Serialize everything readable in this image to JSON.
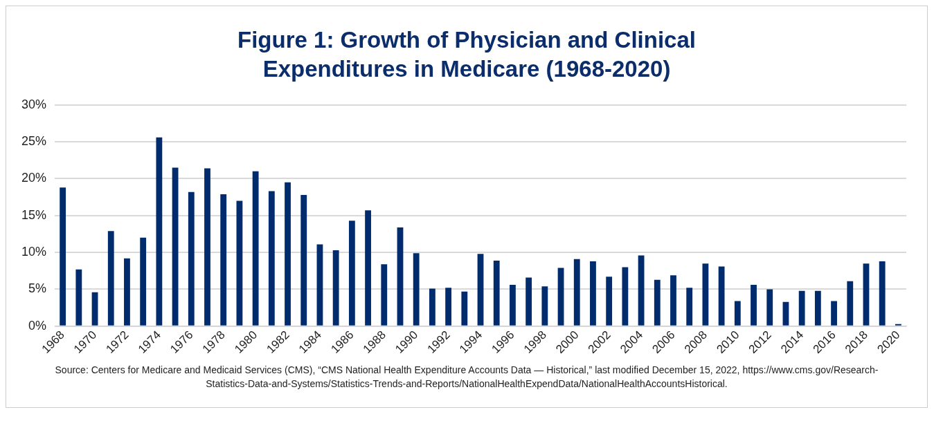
{
  "chart_data": {
    "type": "bar",
    "title": "Figure 1: Growth of Physician and Clinical Expenditures in Medicare (1968-2020)",
    "categories": [
      "1968",
      null,
      "1970",
      null,
      "1972",
      null,
      "1974",
      null,
      "1976",
      null,
      "1978",
      null,
      "1980",
      null,
      "1982",
      null,
      "1984",
      null,
      "1986",
      null,
      "1988",
      null,
      "1990",
      null,
      "1992",
      null,
      "1994",
      null,
      "1996",
      null,
      "1998",
      null,
      "2000",
      null,
      "2002",
      null,
      "2004",
      null,
      "2006",
      null,
      "2008",
      null,
      "2010",
      null,
      "2012",
      null,
      "2014",
      null,
      "2016",
      null,
      "2018",
      null,
      "2020"
    ],
    "values": [
      18.8,
      7.7,
      4.6,
      12.9,
      9.2,
      12.0,
      25.6,
      21.5,
      18.2,
      21.4,
      17.9,
      17.0,
      21.0,
      18.3,
      19.5,
      17.8,
      11.1,
      10.3,
      14.3,
      15.7,
      8.4,
      13.4,
      9.9,
      5.1,
      5.2,
      4.7,
      9.8,
      8.9,
      5.6,
      6.6,
      5.4,
      7.9,
      9.1,
      8.8,
      6.7,
      8.0,
      9.6,
      6.3,
      6.9,
      5.2,
      8.5,
      8.1,
      3.4,
      5.6,
      5.0,
      3.3,
      4.8,
      4.8,
      3.4,
      6.1,
      8.5,
      8.8,
      0.3
    ],
    "color": "#002b6d",
    "ylim": [
      0,
      30
    ],
    "yticks": [
      {
        "value": 0,
        "label": "0%"
      },
      {
        "value": 5,
        "label": "5%"
      },
      {
        "value": 10,
        "label": "10%"
      },
      {
        "value": 15,
        "label": "15%"
      },
      {
        "value": 20,
        "label": "20%"
      },
      {
        "value": 25,
        "label": "25%"
      },
      {
        "value": 30,
        "label": "30%"
      }
    ],
    "grid": "y",
    "legend": false,
    "annotations": [
      "Source: Centers for Medicare and Medicaid Services (CMS), “CMS National Health Expenditure Accounts Data — Historical,” last modified December 15, 2022, https://www.cms.gov/Research-Statistics-Data-and-Systems/Statistics-Trends-and-Reports/NationalHealthExpendData/NationalHealthAccountsHistorical."
    ]
  }
}
